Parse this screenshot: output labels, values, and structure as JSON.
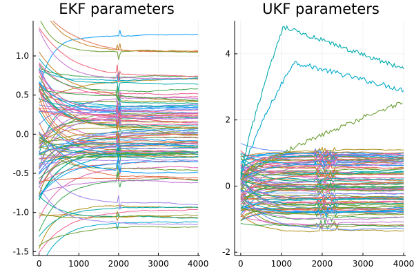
{
  "chart_data": [
    {
      "type": "line",
      "title": "EKF parameters",
      "xlabel": "",
      "ylabel": "",
      "xlim": [
        -150,
        4050
      ],
      "ylim": [
        -1.55,
        1.45
      ],
      "xticks": [
        0,
        1000,
        2000,
        3000,
        4000
      ],
      "xtick_labels": [
        "0",
        "1000",
        "2000",
        "3000",
        "4000"
      ],
      "yticks": [
        -1.5,
        -1.0,
        -0.5,
        0.0,
        0.5,
        1.0
      ],
      "ytick_labels": [
        "-1.5",
        "-1.0",
        "-0.5",
        "0.0",
        "0.5",
        "1.0"
      ],
      "grid": true,
      "legend": "none",
      "series_count": 100,
      "n_points_per_series": 4000,
      "final_values": [
        1.24,
        1.07,
        0.74,
        0.7,
        0.66,
        0.64,
        0.5,
        0.47,
        0.43,
        0.4,
        0.37,
        0.35,
        0.32,
        0.3,
        0.28,
        0.26,
        0.24,
        0.22,
        0.2,
        0.18,
        0.16,
        0.14,
        0.12,
        0.1,
        0.08,
        0.06,
        0.04,
        0.02,
        0.0,
        -0.02,
        -0.04,
        -0.06,
        -0.08,
        -0.1,
        -0.12,
        -0.14,
        -0.16,
        -0.18,
        -0.2,
        -0.22,
        -0.24,
        -0.26,
        -0.28,
        -0.3,
        -0.32,
        -0.35,
        -0.4,
        -0.45,
        -0.5,
        -0.55,
        -0.58,
        -0.6,
        -0.9,
        -0.93,
        -0.96,
        -1.03,
        -1.05,
        -1.08,
        -1.13,
        -1.15
      ]
    },
    {
      "type": "line",
      "title": "UKF parameters",
      "xlabel": "",
      "ylabel": "",
      "xlim": [
        -150,
        4050
      ],
      "ylim": [
        -2.1,
        5.0
      ],
      "xticks": [
        0,
        1000,
        2000,
        3000,
        4000
      ],
      "xtick_labels": [
        "0",
        "1000",
        "2000",
        "3000",
        "4000"
      ],
      "yticks": [
        -2,
        0,
        2,
        4
      ],
      "ytick_labels": [
        "-2",
        "0",
        "2",
        "4"
      ],
      "grid": true,
      "legend": "none",
      "series_count": 100,
      "n_points_per_series": 4000,
      "highlight_series": [
        {
          "peak_x": 1050,
          "peak": 4.8,
          "final": 3.55
        },
        {
          "peak_x": 1300,
          "peak": 3.75,
          "final": 2.9
        },
        {
          "peak_x": 4000,
          "peak": 2.55,
          "final": 2.55
        }
      ],
      "final_values": [
        1.0,
        0.9,
        0.75,
        0.65,
        0.5,
        0.4,
        0.3,
        0.2,
        0.1,
        0.0,
        -0.1,
        -0.2,
        -0.3,
        -0.4,
        -0.5,
        -0.6,
        -0.7,
        -0.8,
        -1.0,
        -1.2,
        -1.35
      ]
    }
  ],
  "palette": [
    "#009af9",
    "#e26f46",
    "#3da44d",
    "#c271d2",
    "#ac8e18",
    "#00a9ad",
    "#ed5e93",
    "#c68225",
    "#00a98d",
    "#8e971d",
    "#00a8cb",
    "#9b7fe9",
    "#618df6",
    "#f05f73",
    "#dd64b5",
    "#6b9e32"
  ],
  "axis_color": "#000000",
  "grid_color": "#e6e6e6"
}
